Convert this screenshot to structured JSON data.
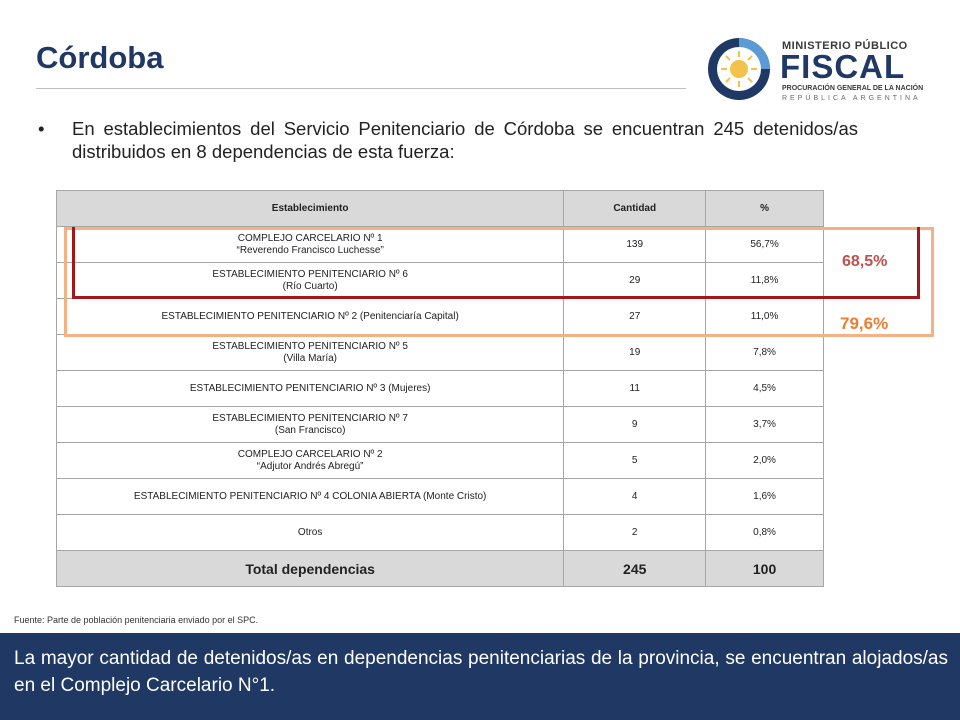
{
  "slide": {
    "title": "Córdoba",
    "bullet": "En establecimientos del Servicio Penitenciario de Córdoba se encuentran 245 detenidos/as distribuidos en 8 dependencias de esta fuerza:",
    "source": "Fuente: Parte de población penitenciaria enviado por el SPC.",
    "conclusion": "La mayor cantidad de detenidos/as en dependencias penitenciarias de la provincia, se encuentran alojados/as en el Complejo Carcelario N°1."
  },
  "logo": {
    "line1": "MINISTERIO PÚBLICO",
    "line2": "FISCAL",
    "line3": "PROCURACIÓN GENERAL DE LA NACIÓN",
    "line4": "REPÚBLICA ARGENTINA"
  },
  "table": {
    "headers": [
      "Establecimiento",
      "Cantidad",
      "%"
    ],
    "rows": [
      {
        "name": [
          "COMPLEJO CARCELARIO Nº 1",
          "“Reverendo Francisco Luchesse”"
        ],
        "qty": "139",
        "pct": "56,7%"
      },
      {
        "name": [
          "ESTABLECIMIENTO PENITENCIARIO Nº 6",
          "(Río Cuarto)"
        ],
        "qty": "29",
        "pct": "11,8%"
      },
      {
        "name": [
          "ESTABLECIMIENTO PENITENCIARIO Nº 2 (Penitenciaría Capital)"
        ],
        "qty": "27",
        "pct": "11,0%"
      },
      {
        "name": [
          "ESTABLECIMIENTO PENITENCIARIO Nº 5",
          "(Villa María)"
        ],
        "qty": "19",
        "pct": "7,8%"
      },
      {
        "name": [
          "ESTABLECIMIENTO PENITENCIARIO Nº 3 (Mujeres)"
        ],
        "qty": "11",
        "pct": "4,5%"
      },
      {
        "name": [
          "ESTABLECIMIENTO PENITENCIARIO Nº 7",
          "(San Francisco)"
        ],
        "qty": "9",
        "pct": "3,7%"
      },
      {
        "name": [
          "COMPLEJO CARCELARIO Nº 2",
          "“Adjutor Andrés Abregú”"
        ],
        "qty": "5",
        "pct": "2,0%"
      },
      {
        "name": [
          "ESTABLECIMIENTO PENITENCIARIO Nº 4 COLONIA ABIERTA (Monte Cristo)"
        ],
        "qty": "4",
        "pct": "1,6%"
      },
      {
        "name": [
          "Otros"
        ],
        "qty": "2",
        "pct": "0,8%"
      }
    ],
    "total": {
      "label": "Total dependencias",
      "qty": "245",
      "pct": "100"
    }
  },
  "highlights": {
    "top2_pct": "68,5%",
    "top3_pct": "79,6%"
  },
  "colors": {
    "title": "#1f3864",
    "footer_bg": "#1f3864",
    "highlight_red": "#a4161a",
    "highlight_orange": "#f4b183",
    "header_bg": "#d9d9d9"
  }
}
